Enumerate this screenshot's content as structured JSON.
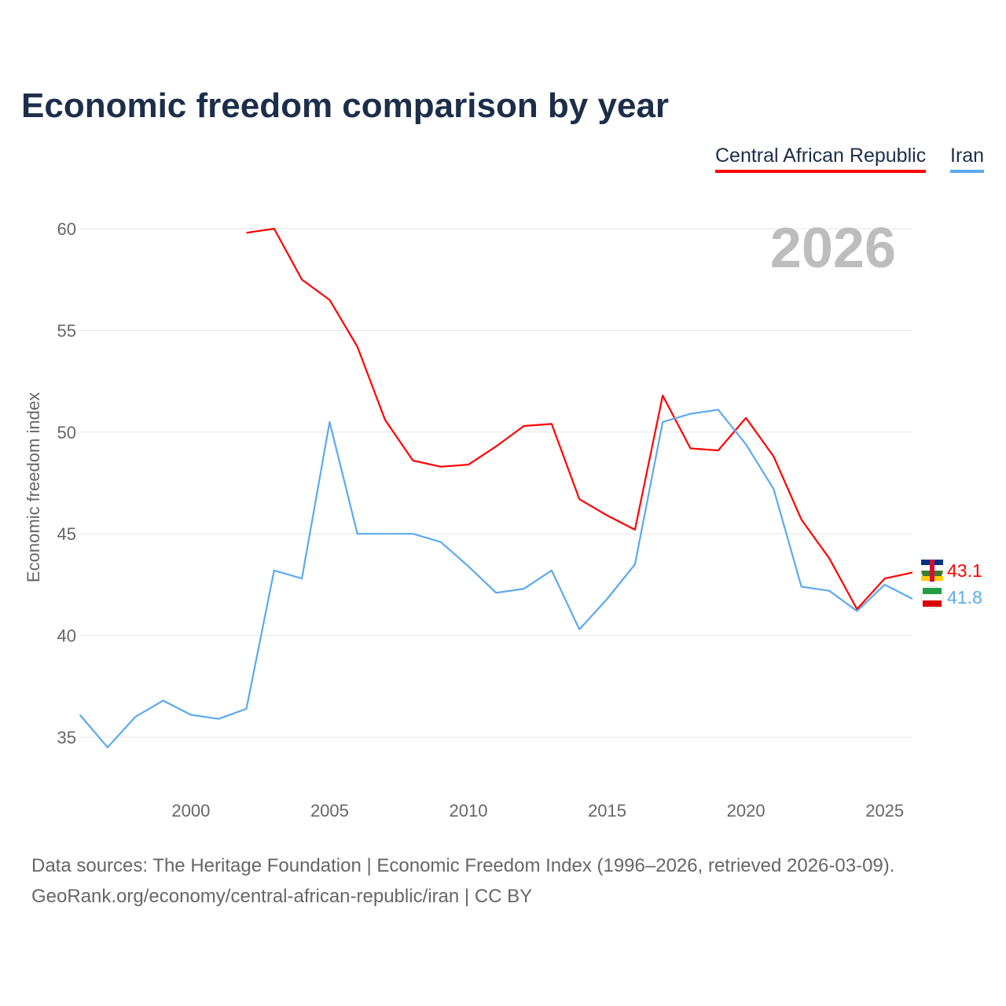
{
  "chart_data": {
    "type": "line",
    "title": "Economic freedom comparison by year",
    "ylabel": "Economic freedom index",
    "xlabel": "",
    "xlim": [
      1996,
      2026
    ],
    "ylim": [
      32.5,
      62
    ],
    "yticks": [
      35,
      40,
      45,
      50,
      55,
      60
    ],
    "xticks": [
      2000,
      2005,
      2010,
      2015,
      2020,
      2025
    ],
    "grid": true,
    "year_label": "2026",
    "legend_position": "top-right",
    "series": [
      {
        "name": "Central African Republic",
        "color": "#ff0000",
        "end_label": "43.1",
        "x": [
          2002,
          2003,
          2004,
          2005,
          2006,
          2007,
          2008,
          2009,
          2010,
          2011,
          2012,
          2013,
          2014,
          2015,
          2016,
          2017,
          2018,
          2019,
          2020,
          2021,
          2022,
          2023,
          2024,
          2025,
          2026
        ],
        "values": [
          59.8,
          60.0,
          57.5,
          56.5,
          54.2,
          50.6,
          48.6,
          48.3,
          48.4,
          49.3,
          50.3,
          50.4,
          46.7,
          45.9,
          45.2,
          51.8,
          49.2,
          49.1,
          50.7,
          48.8,
          45.7,
          43.8,
          41.3,
          42.8,
          43.1
        ]
      },
      {
        "name": "Iran",
        "color": "#5da9ee",
        "end_label": "41.8",
        "x": [
          1996,
          1997,
          1998,
          1999,
          2000,
          2001,
          2002,
          2003,
          2004,
          2005,
          2006,
          2007,
          2008,
          2009,
          2010,
          2011,
          2012,
          2013,
          2014,
          2015,
          2016,
          2017,
          2018,
          2019,
          2020,
          2021,
          2022,
          2023,
          2024,
          2025,
          2026
        ],
        "values": [
          36.1,
          34.5,
          36.0,
          36.8,
          36.1,
          35.9,
          36.4,
          43.2,
          42.8,
          50.5,
          45.0,
          45.0,
          45.0,
          44.6,
          43.4,
          42.1,
          42.3,
          43.2,
          40.3,
          41.8,
          43.5,
          50.5,
          50.9,
          51.1,
          49.4,
          47.2,
          42.4,
          42.2,
          41.2,
          42.5,
          41.8
        ]
      }
    ]
  },
  "footer": {
    "line1": "Data sources: The Heritage Foundation | Economic Freedom Index (1996–2026, retrieved 2026-03-09).",
    "line2": "GeoRank.org/economy/central-african-republic/iran | CC BY"
  }
}
